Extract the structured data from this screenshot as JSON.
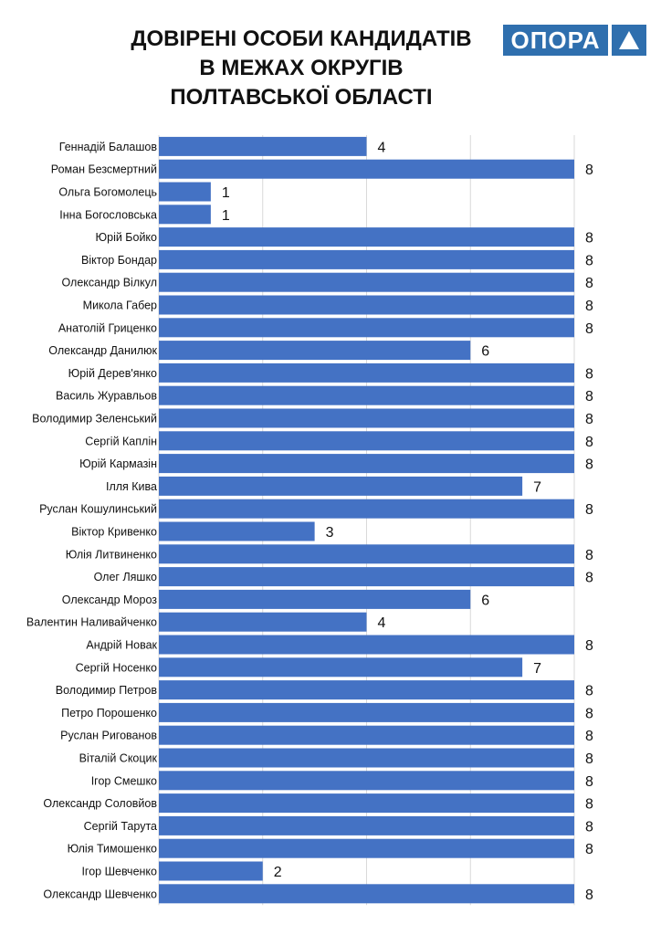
{
  "title": {
    "line1": "ДОВІРЕНІ ОСОБИ КАНДИДАТІВ",
    "line2": "В МЕЖАХ ОКРУГІВ",
    "line3": "ПОЛТАВСЬКОЇ ОБЛАСТІ"
  },
  "logo": {
    "text": "ОПОРА"
  },
  "colors": {
    "bar": "#4472c4",
    "brand": "#2f6fae",
    "grid": "#d9d9d9"
  },
  "chart_data": {
    "type": "bar",
    "orientation": "horizontal",
    "title": "ДОВІРЕНІ ОСОБИ КАНДИДАТІВ В МЕЖАХ ОКРУГІВ ПОЛТАВСЬКОЇ ОБЛАСТІ",
    "xlabel": "",
    "ylabel": "",
    "xlim": [
      0,
      8
    ],
    "grid": true,
    "categories": [
      "Геннадій Балашов",
      "Роман Безсмертний",
      "Ольга Богомолець",
      "Інна Богословська",
      "Юрій Бойко",
      "Віктор Бондар",
      "Олександр Вілкул",
      "Микола Габер",
      "Анатолій Гриценко",
      "Олександр Данилюк",
      "Юрій Дерев'янко",
      "Василь Журавльов",
      "Володимир Зеленський",
      "Сергій Каплін",
      "Юрій Кармазін",
      "Ілля Кива",
      "Руслан Кошулинський",
      "Віктор Кривенко",
      "Юлія Литвиненко",
      "Олег Ляшко",
      "Олександр Мороз",
      "Валентин Наливайченко",
      "Андрій Новак",
      "Сергій Носенко",
      "Володимир Петров",
      "Петро Порошенко",
      "Руслан Ригованов",
      "Віталій Скоцик",
      "Ігор Смешко",
      "Олександр Соловйов",
      "Сергій Тарута",
      "Юлія Тимошенко",
      "Ігор Шевченко",
      "Олександр Шевченко"
    ],
    "values": [
      4,
      8,
      1,
      1,
      8,
      8,
      8,
      8,
      8,
      6,
      8,
      8,
      8,
      8,
      8,
      7,
      8,
      3,
      8,
      8,
      6,
      4,
      8,
      7,
      8,
      8,
      8,
      8,
      8,
      8,
      8,
      8,
      2,
      8
    ],
    "data_labels": [
      "4",
      "8",
      "1",
      "1",
      "8",
      "8",
      "8",
      "8",
      "8",
      "6",
      "8",
      "8",
      "8",
      "8",
      "8",
      "7",
      "8",
      "3",
      "8",
      "8",
      "6",
      "4",
      "8",
      "7",
      "8",
      "8",
      "8",
      "8",
      "8",
      "8",
      "8",
      "8",
      "2",
      "8"
    ]
  }
}
